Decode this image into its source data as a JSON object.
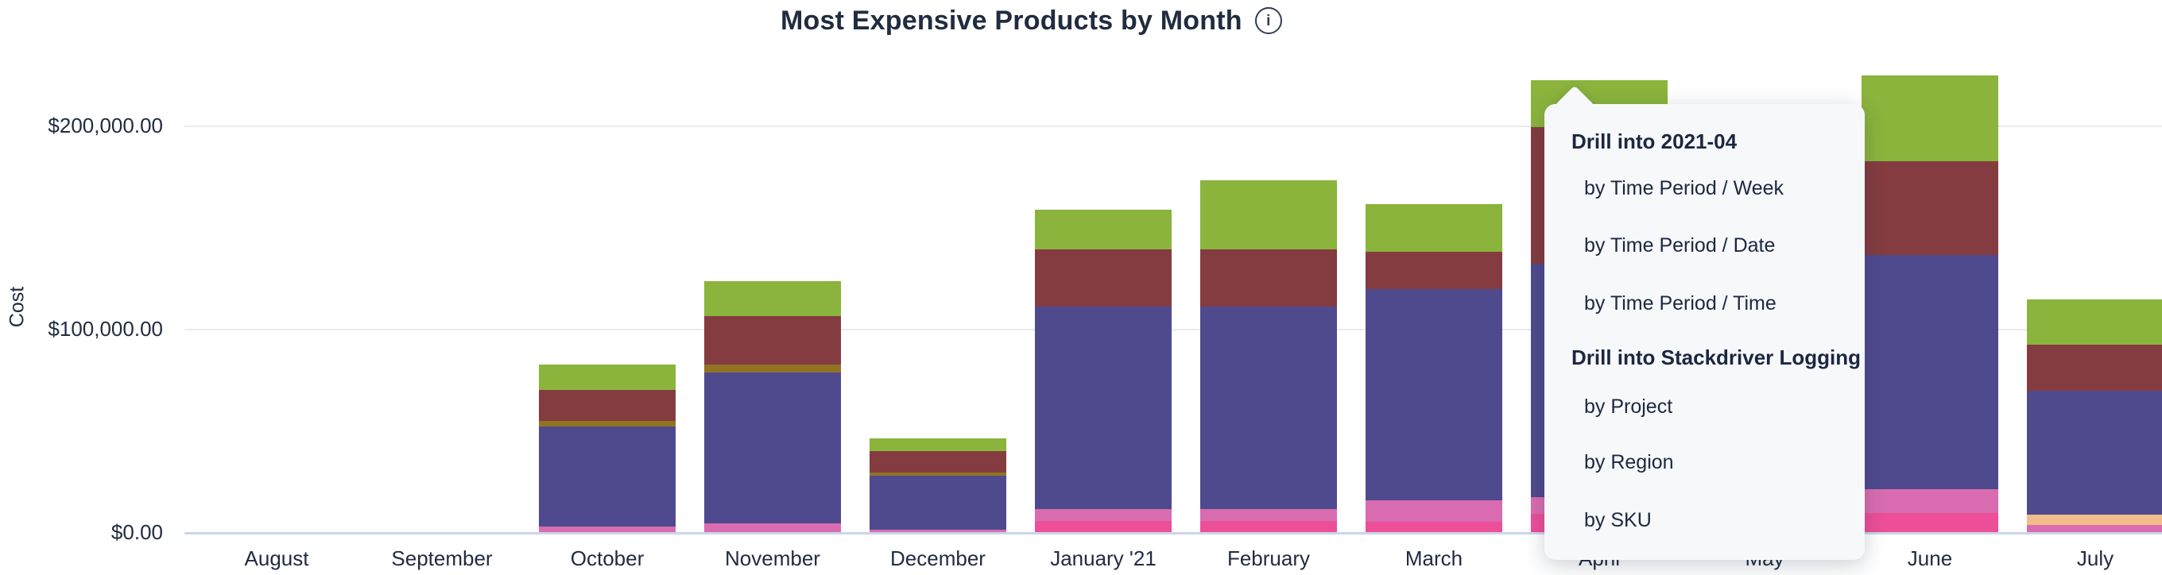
{
  "header": {
    "title": "Most Expensive Products by Month",
    "info_icon": "i"
  },
  "menu": {
    "sections": [
      {
        "header": "Drill into 2021-04",
        "items": [
          "by Time Period / Week",
          "by Time Period / Date",
          "by Time Period / Time"
        ]
      },
      {
        "header": "Drill into Stackdriver Logging",
        "items": [
          "by Project",
          "by Region",
          "by SKU"
        ]
      }
    ]
  },
  "colors": {
    "text_dark": "#212c40",
    "gridline": "#e9ebee",
    "axis_zero_line": "#ccd5ea",
    "menu_background": "#f6f8fa"
  },
  "chart_data": {
    "type": "bar",
    "stacked": true,
    "title": "Most Expensive Products by Month",
    "xlabel": "",
    "ylabel": "Cost",
    "ylim": [
      0,
      230000
    ],
    "grid": true,
    "legend": "none (hidden)",
    "y_ticks": [
      {
        "label": "$0.00",
        "value": 0
      },
      {
        "label": "$100,000.00",
        "value": 100000
      },
      {
        "label": "$200,000.00",
        "value": 200000
      }
    ],
    "categories": [
      "August",
      "September",
      "October",
      "November",
      "December",
      "January '21",
      "February",
      "March",
      "April",
      "May",
      "June",
      "July"
    ],
    "occluded_categories": [
      "May"
    ],
    "series": [
      {
        "name": "pink-bright",
        "color": "#ec4f98",
        "values": [
          0,
          0,
          0,
          0,
          0,
          5400,
          5400,
          5100,
          9000,
          0,
          9300,
          0
        ]
      },
      {
        "name": "pink-medium",
        "color": "#d96cb0",
        "values": [
          0,
          0,
          2700,
          4300,
          1000,
          5800,
          5800,
          10500,
          8000,
          0,
          11700,
          3500
        ]
      },
      {
        "name": "orange",
        "color": "#f2bd8a",
        "values": [
          0,
          0,
          0,
          0,
          0,
          0,
          0,
          0,
          0,
          0,
          0,
          5100
        ]
      },
      {
        "name": "purple",
        "color": "#4f4a8e",
        "values": [
          0,
          0,
          49400,
          74300,
          26800,
          99600,
          99600,
          103900,
          115000,
          0,
          115200,
          61100
        ]
      },
      {
        "name": "olive",
        "color": "#927322",
        "values": [
          0,
          0,
          2700,
          3900,
          1600,
          0,
          0,
          0,
          0,
          0,
          0,
          0
        ]
      },
      {
        "name": "maroon",
        "color": "#843c40",
        "values": [
          0,
          0,
          15200,
          23700,
          10500,
          28400,
          28400,
          18300,
          67300,
          0,
          46300,
          22600
        ]
      },
      {
        "name": "green",
        "color": "#8ab43c",
        "values": [
          0,
          0,
          12500,
          17100,
          6200,
          19500,
          33900,
          23700,
          23000,
          0,
          42000,
          22200
        ]
      }
    ]
  }
}
